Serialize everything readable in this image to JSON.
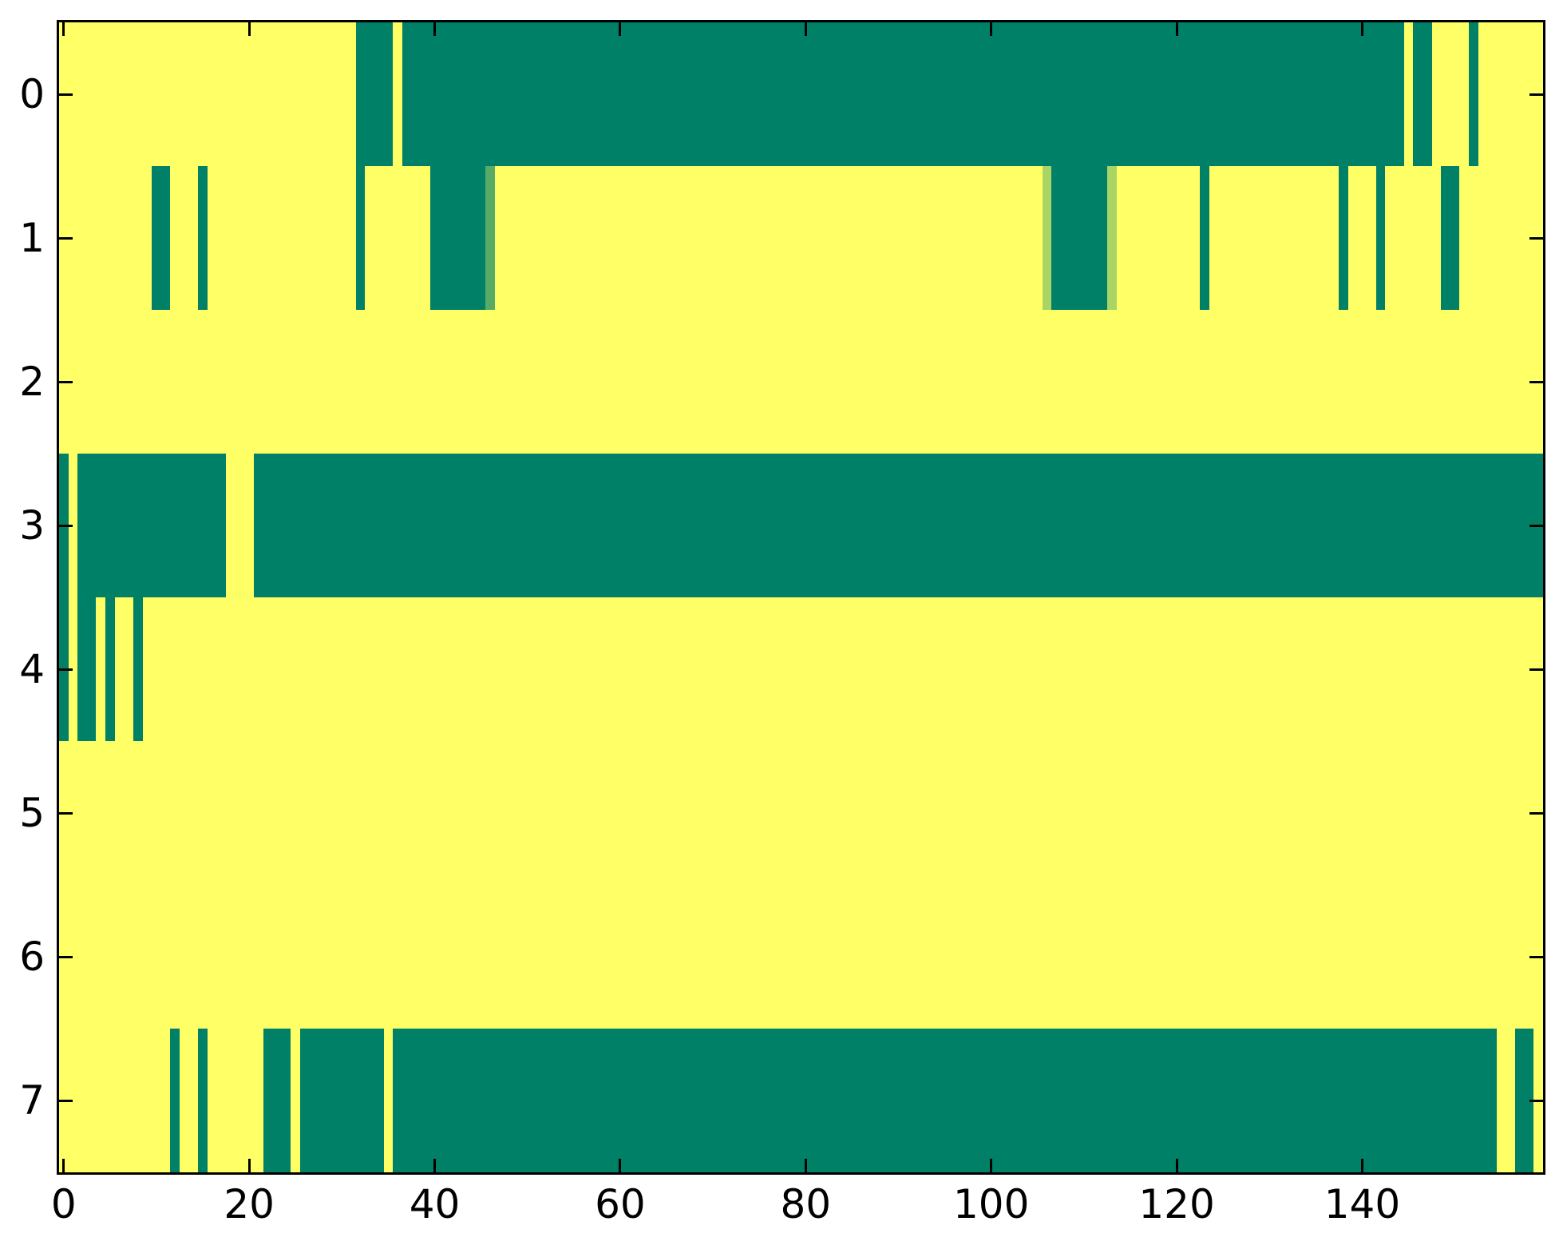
{
  "chart_data": {
    "type": "heatmap",
    "title": "",
    "xlabel": "",
    "ylabel": "",
    "colormap": "summer",
    "palette": {
      "v0": "#008066",
      "v034": "#57ab66",
      "v067": "#aad466",
      "v1": "#ffff66"
    },
    "palette_values": {
      "v0": 0.0,
      "v034": 0.34,
      "v067": 0.67,
      "v1": 1.0
    },
    "background_value_key": "v1",
    "n_cols": 160,
    "n_rows": 8,
    "xlim": [
      -0.5,
      159.5
    ],
    "x_ticks": [
      0,
      20,
      40,
      60,
      80,
      100,
      120,
      140
    ],
    "y_tick_labels": [
      "0",
      "1",
      "2",
      "3",
      "4",
      "5",
      "6",
      "7"
    ],
    "segment_units": "column index, column i spans data x in [i-0.5, i+0.5]",
    "grid": false,
    "legend": false,
    "rows": [
      {
        "label": "0",
        "segments": [
          {
            "start": 32,
            "end": 36,
            "v": "v0"
          },
          {
            "start": 37,
            "end": 145,
            "v": "v0"
          },
          {
            "start": 146,
            "end": 148,
            "v": "v0"
          },
          {
            "start": 152,
            "end": 153,
            "v": "v0"
          }
        ]
      },
      {
        "label": "1",
        "segments": [
          {
            "start": 10,
            "end": 12,
            "v": "v0"
          },
          {
            "start": 15,
            "end": 16,
            "v": "v0"
          },
          {
            "start": 32,
            "end": 33,
            "v": "v0"
          },
          {
            "start": 40,
            "end": 46,
            "v": "v0"
          },
          {
            "start": 46,
            "end": 47,
            "v": "v034"
          },
          {
            "start": 106,
            "end": 107,
            "v": "v067"
          },
          {
            "start": 107,
            "end": 113,
            "v": "v0"
          },
          {
            "start": 113,
            "end": 114,
            "v": "v067"
          },
          {
            "start": 123,
            "end": 124,
            "v": "v0"
          },
          {
            "start": 138,
            "end": 139,
            "v": "v0"
          },
          {
            "start": 142,
            "end": 143,
            "v": "v0"
          },
          {
            "start": 149,
            "end": 151,
            "v": "v0"
          }
        ]
      },
      {
        "label": "2",
        "segments": []
      },
      {
        "label": "3",
        "segments": [
          {
            "start": 0,
            "end": 1,
            "v": "v0"
          },
          {
            "start": 2,
            "end": 18,
            "v": "v0"
          },
          {
            "start": 21,
            "end": 160,
            "v": "v0"
          }
        ]
      },
      {
        "label": "4",
        "segments": [
          {
            "start": 0,
            "end": 1,
            "v": "v0"
          },
          {
            "start": 2,
            "end": 4,
            "v": "v0"
          },
          {
            "start": 5,
            "end": 6,
            "v": "v0"
          },
          {
            "start": 8,
            "end": 9,
            "v": "v0"
          }
        ]
      },
      {
        "label": "5",
        "segments": []
      },
      {
        "label": "6",
        "segments": []
      },
      {
        "label": "7",
        "segments": [
          {
            "start": 12,
            "end": 13,
            "v": "v0"
          },
          {
            "start": 15,
            "end": 16,
            "v": "v0"
          },
          {
            "start": 22,
            "end": 25,
            "v": "v0"
          },
          {
            "start": 26,
            "end": 35,
            "v": "v0"
          },
          {
            "start": 36,
            "end": 155,
            "v": "v0"
          },
          {
            "start": 157,
            "end": 159,
            "v": "v0"
          }
        ]
      }
    ]
  }
}
